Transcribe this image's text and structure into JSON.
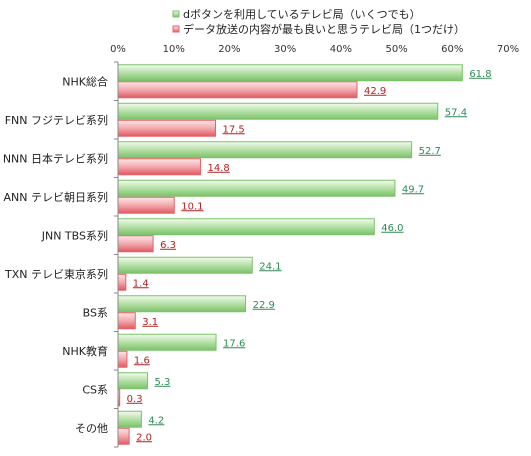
{
  "chart_data": {
    "type": "bar",
    "orientation": "horizontal",
    "categories": [
      "NHK総合",
      "FNN フジテレビ系列",
      "NNN 日本テレビ系列",
      "ANN テレビ朝日系列",
      "JNN TBS系列",
      "TXN テレビ東京系列",
      "BS系",
      "NHK教育",
      "CS系",
      "その他"
    ],
    "series": [
      {
        "name": "dボタンを利用しているテレビ局（いくつでも）",
        "color": "#7cc26a",
        "label_color": "#2e8b57",
        "values": [
          61.8,
          57.4,
          52.7,
          49.7,
          46.0,
          24.1,
          22.9,
          17.6,
          5.3,
          4.2
        ],
        "value_labels": [
          "61.8",
          "57.4",
          "52.7",
          "49.7",
          "46.0",
          "24.1",
          "22.9",
          "17.6",
          "5.3",
          "4.2"
        ]
      },
      {
        "name": "データ放送の内容が最も良いと思うテレビ局（1つだけ）",
        "color": "#e8616a",
        "label_color": "#b22222",
        "values": [
          42.9,
          17.5,
          14.8,
          10.1,
          6.3,
          1.4,
          3.1,
          1.6,
          0.3,
          2.0
        ],
        "value_labels": [
          "42.9",
          "17.5",
          "14.8",
          "10.1",
          "6.3",
          "1.4",
          "3.1",
          "1.6",
          "0.3",
          "2.0"
        ]
      }
    ],
    "xlim": [
      0,
      70
    ],
    "ticks": [
      "0%",
      "10%",
      "20%",
      "30%",
      "40%",
      "50%",
      "60%",
      "70%"
    ],
    "grid": false,
    "legend_position": "top-right"
  }
}
